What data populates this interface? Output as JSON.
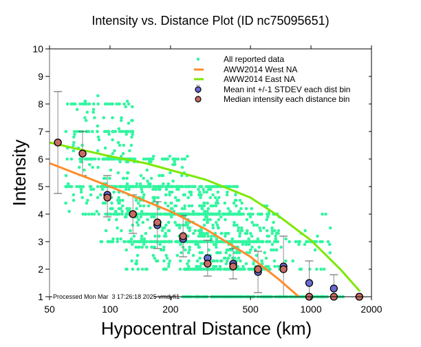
{
  "chart_data": {
    "type": "scatter",
    "title": "Intensity vs. Distance Plot (ID nc75095651)",
    "xlabel": "Hypocentral Distance (km)",
    "ylabel": "Intensity",
    "xscale": "log",
    "xlim": [
      50,
      2000
    ],
    "ylim": [
      1,
      10
    ],
    "xticks": [
      50,
      100,
      200,
      500,
      1000,
      2000
    ],
    "xtick_labels": [
      "50",
      "100",
      "200",
      "500",
      "1000",
      "2000"
    ],
    "yticks": [
      1,
      2,
      3,
      4,
      5,
      6,
      7,
      8,
      9,
      10
    ],
    "ytick_labels": [
      "1",
      "2",
      "3",
      "4",
      "5",
      "6",
      "7",
      "8",
      "9",
      "10"
    ],
    "legend_position": "top-right",
    "footnote": "Processed Mon Mar  3 17:26:18 2025 vmdyfi1",
    "colors": {
      "reported": "#33f5a0",
      "west": "#ff8c2a",
      "east": "#7ce800",
      "mean": "#6a6ad2",
      "median": "#c96a64",
      "errorbar": "#8c8c8c"
    },
    "series": [
      {
        "name": "All reported data",
        "kind": "points",
        "clusters": [
          {
            "dist_range": [
              60,
              130
            ],
            "int_range": [
              4.0,
              8.3
            ],
            "count": 220
          },
          {
            "dist_range": [
              90,
              250
            ],
            "int_range": [
              3.0,
              6.2
            ],
            "count": 300
          },
          {
            "dist_range": [
              120,
              450
            ],
            "int_range": [
              2.0,
              5.0
            ],
            "count": 520
          },
          {
            "dist_range": [
              230,
              700
            ],
            "int_range": [
              2.0,
              4.4
            ],
            "count": 300
          },
          {
            "dist_range": [
              400,
              1250
            ],
            "int_range": [
              2.0,
              3.6
            ],
            "count": 80
          },
          {
            "dist_range": [
              230,
              1450
            ],
            "int_range": [
              1.0,
              1.0
            ],
            "count": 180
          }
        ]
      },
      {
        "name": "AWW2014 West NA",
        "kind": "line",
        "x": [
          50,
          100,
          200,
          300,
          500,
          700,
          870
        ],
        "y": [
          5.85,
          5.0,
          4.1,
          3.45,
          2.45,
          1.6,
          1.0
        ]
      },
      {
        "name": "AWW2014 East NA",
        "kind": "line",
        "x": [
          50,
          100,
          150,
          200,
          300,
          500,
          700,
          1000,
          1400,
          1750
        ],
        "y": [
          6.6,
          6.1,
          5.85,
          5.6,
          5.25,
          4.6,
          3.9,
          3.05,
          2.0,
          1.2
        ]
      },
      {
        "name": "Mean int +/-1 STDEV each dist bin",
        "kind": "errorbar",
        "x": [
          55,
          73,
          97,
          130,
          172,
          231,
          306,
          410,
          545,
          730,
          980,
          1300,
          1740
        ],
        "y": [
          6.6,
          6.2,
          4.7,
          4.0,
          3.6,
          3.1,
          2.4,
          2.2,
          1.9,
          2.1,
          1.5,
          1.3,
          1.0
        ],
        "lower": [
          4.75,
          5.4,
          3.9,
          3.3,
          2.75,
          2.45,
          1.75,
          1.65,
          1.15,
          1.0,
          1.0,
          1.0,
          1.0
        ],
        "upper": [
          8.45,
          7.0,
          5.4,
          4.7,
          4.45,
          3.95,
          3.05,
          2.75,
          2.65,
          3.2,
          2.3,
          1.8,
          1.0
        ]
      },
      {
        "name": "Median intensity each distance bin",
        "kind": "points",
        "x": [
          55,
          73,
          97,
          130,
          172,
          231,
          306,
          410,
          545,
          730,
          980,
          1300,
          1740
        ],
        "y": [
          6.6,
          6.2,
          4.6,
          4.0,
          3.7,
          3.2,
          2.2,
          2.1,
          2.0,
          2.0,
          1.0,
          1.0,
          1.0
        ]
      }
    ]
  }
}
